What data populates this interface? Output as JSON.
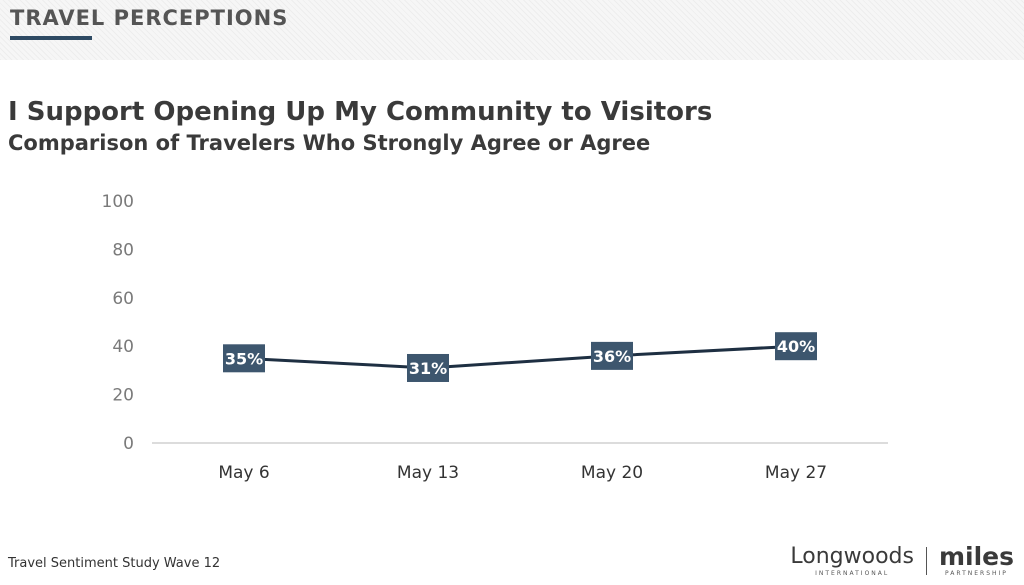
{
  "header": {
    "section_title": "TRAVEL PERCEPTIONS"
  },
  "chart_data": {
    "type": "line",
    "title": "I Support Opening Up My Community to Visitors",
    "subtitle": "Comparison of Travelers Who Strongly Agree or Agree",
    "categories": [
      "May 6",
      "May 13",
      "May 20",
      "May 27"
    ],
    "values": [
      35,
      31,
      36,
      40
    ],
    "data_labels": [
      "35%",
      "31%",
      "36%",
      "40%"
    ],
    "ylim": [
      0,
      100
    ],
    "yticks": [
      0,
      20,
      40,
      60,
      80,
      100
    ],
    "ytick_labels": [
      "0",
      "20",
      "40",
      "60",
      "80",
      "100"
    ],
    "xlabel": "",
    "ylabel": "",
    "grid": false,
    "legend": "none",
    "line_color": "#1e2f42",
    "label_box_color": "#3d566e"
  },
  "footer": {
    "note": "Travel Sentiment Study Wave 12",
    "logo_left": "Longwoods",
    "logo_left_sub": "INTERNATIONAL",
    "logo_right": "miles",
    "logo_right_sub": "PARTNERSHIP"
  }
}
